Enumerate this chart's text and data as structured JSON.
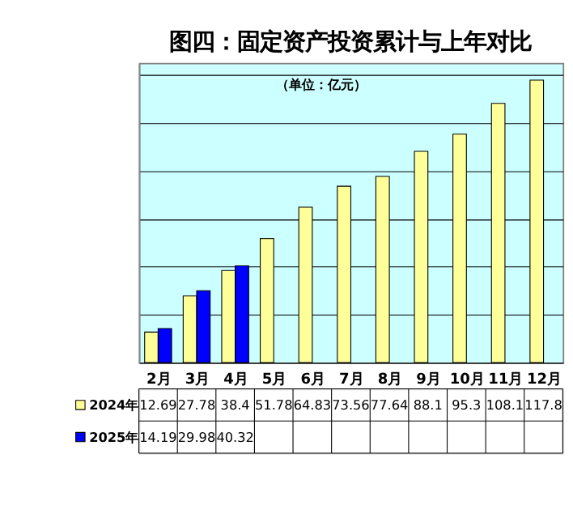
{
  "chart_data": {
    "type": "bar",
    "title": "图四：固定资产投资累计与上年对比",
    "subtitle": "（单位：亿元）",
    "categories": [
      "2月",
      "3月",
      "4月",
      "5月",
      "6月",
      "7月",
      "8月",
      "9月",
      "10月",
      "11月",
      "12月"
    ],
    "series": [
      {
        "name": "2024年",
        "color": "#ffff99",
        "values": [
          12.69,
          27.78,
          38.4,
          51.78,
          64.83,
          73.56,
          77.64,
          88.1,
          95.3,
          108.1,
          117.8
        ]
      },
      {
        "name": "2025年",
        "color": "#0000ff",
        "values": [
          14.19,
          29.98,
          40.32,
          null,
          null,
          null,
          null,
          null,
          null,
          null,
          null
        ]
      }
    ],
    "ylim": [
      0,
      125
    ],
    "yticks": [
      {
        "value": 0,
        "label": null
      },
      {
        "value": 20,
        "label": null
      },
      {
        "value": 40,
        "label": null
      },
      {
        "value": 60,
        "label": null
      },
      {
        "value": 80,
        "label": null
      },
      {
        "value": 100,
        "label": null
      },
      {
        "value": 120,
        "label": null
      }
    ],
    "grid": "y",
    "tick_labels": "x",
    "data_labels": true,
    "legend": "bottom left"
  }
}
